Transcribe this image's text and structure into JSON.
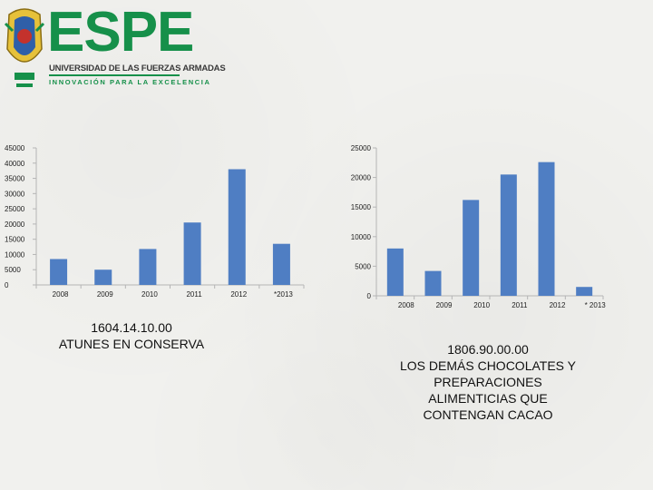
{
  "logo": {
    "wordmark": "ESPE",
    "line1": "UNIVERSIDAD DE LAS FUERZAS ARMADAS",
    "line2": "INNOVACIÓN PARA LA EXCELENCIA"
  },
  "colors": {
    "bar": "#4f7ec3",
    "axis": "#b5b5b5",
    "brand": "#16904a"
  },
  "chart_data": [
    {
      "type": "bar",
      "caption_lines": [
        "1604.14.10.00",
        "ATUNES EN CONSERVA"
      ],
      "categories": [
        "2008",
        "2009",
        "2010",
        "2011",
        "2012",
        "*2013"
      ],
      "values": [
        8500,
        5000,
        11800,
        20500,
        38000,
        13500
      ],
      "yticks": [
        0,
        5000,
        10000,
        15000,
        20000,
        25000,
        30000,
        35000,
        40000,
        45000
      ],
      "ylim": [
        0,
        45000
      ]
    },
    {
      "type": "bar",
      "caption_lines": [
        "1806.90.00.00",
        "LOS DEMÁS CHOCOLATES Y",
        "PREPARACIONES",
        "ALIMENTICIAS QUE",
        "CONTENGAN CACAO"
      ],
      "categories": [
        "2008",
        "2009",
        "2010",
        "2011",
        "2012",
        "* 2013"
      ],
      "values": [
        8000,
        4200,
        16200,
        20500,
        22600,
        1500
      ],
      "yticks": [
        0,
        5000,
        10000,
        15000,
        20000,
        25000
      ],
      "ylim": [
        0,
        25000
      ]
    }
  ]
}
